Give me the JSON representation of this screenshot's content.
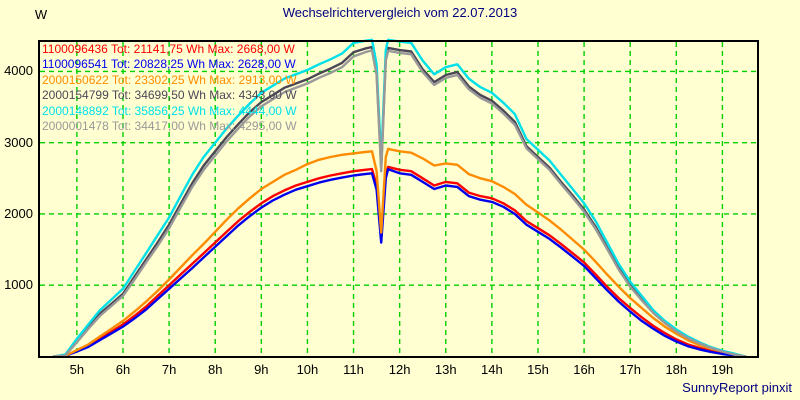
{
  "credit": "SunnyReport pinxit",
  "legend_labels": {
    "tot": "Tot:",
    "wh": "Wh",
    "max": "Max:",
    "w": "W"
  },
  "colors": {
    "background": "#FFFFD2",
    "grid": "#00CF00",
    "border": "#000000",
    "title_text": "#000080",
    "axis_text": "#000000",
    "credit_text": "#000080"
  },
  "chart_data": {
    "type": "line",
    "title": "Wechselrichtervergleich vom 22.07.2013",
    "y_unit": "W",
    "xlabel": "",
    "ylabel": "W",
    "xlim": [
      4.2,
      19.75
    ],
    "ylim": [
      0,
      4420
    ],
    "grid": true,
    "legend_position": "top-left",
    "yticks": [
      1000,
      2000,
      3000,
      4000
    ],
    "xtick_hours": [
      5,
      6,
      7,
      8,
      9,
      10,
      11,
      12,
      13,
      14,
      15,
      16,
      17,
      18,
      19
    ],
    "xtick_labels": [
      "5h",
      "6h",
      "7h",
      "8h",
      "9h",
      "10h",
      "11h",
      "12h",
      "13h",
      "14h",
      "15h",
      "16h",
      "17h",
      "18h",
      "19h"
    ],
    "x_hours": [
      4.5,
      4.75,
      5,
      5.25,
      5.5,
      5.75,
      6,
      6.25,
      6.5,
      6.75,
      7,
      7.25,
      7.5,
      7.75,
      8,
      8.25,
      8.5,
      8.75,
      9,
      9.25,
      9.5,
      9.75,
      10,
      10.25,
      10.5,
      10.75,
      11,
      11.25,
      11.4,
      11.5,
      11.6,
      11.7,
      11.75,
      12,
      12.25,
      12.5,
      12.75,
      13,
      13.25,
      13.5,
      13.75,
      14,
      14.25,
      14.5,
      14.75,
      15,
      15.25,
      15.5,
      15.75,
      16,
      16.25,
      16.5,
      16.75,
      17,
      17.25,
      17.5,
      17.75,
      18,
      18.25,
      18.5,
      18.75,
      19,
      19.25,
      19.5
    ],
    "series": [
      {
        "id": "1100096436",
        "total_wh": "21141,75",
        "max_w": "2668,00",
        "color": "#FF0000",
        "values": [
          0,
          10,
          80,
          150,
          250,
          350,
          450,
          570,
          700,
          850,
          1000,
          1150,
          1300,
          1450,
          1600,
          1750,
          1900,
          2030,
          2150,
          2250,
          2330,
          2400,
          2450,
          2500,
          2540,
          2570,
          2600,
          2620,
          2630,
          2400,
          1670,
          2550,
          2660,
          2620,
          2600,
          2500,
          2400,
          2450,
          2430,
          2300,
          2250,
          2220,
          2150,
          2050,
          1900,
          1800,
          1700,
          1580,
          1450,
          1320,
          1150,
          980,
          820,
          680,
          550,
          430,
          330,
          240,
          170,
          120,
          80,
          45,
          20,
          0
        ]
      },
      {
        "id": "1100096541",
        "total_wh": "20828,25",
        "max_w": "2628,00",
        "color": "#0000EE",
        "values": [
          0,
          8,
          70,
          135,
          230,
          325,
          420,
          535,
          660,
          805,
          950,
          1095,
          1240,
          1390,
          1540,
          1690,
          1840,
          1970,
          2090,
          2190,
          2270,
          2340,
          2390,
          2440,
          2480,
          2510,
          2540,
          2560,
          2570,
          2340,
          1600,
          2500,
          2628,
          2570,
          2550,
          2450,
          2350,
          2400,
          2380,
          2250,
          2200,
          2170,
          2100,
          2000,
          1850,
          1750,
          1650,
          1530,
          1400,
          1270,
          1100,
          930,
          770,
          630,
          500,
          390,
          290,
          210,
          145,
          100,
          65,
          35,
          15,
          0
        ]
      },
      {
        "id": "2000150622",
        "total_wh": "23302,25",
        "max_w": "2913,00",
        "color": "#FF8C00",
        "values": [
          0,
          10,
          90,
          170,
          280,
          390,
          500,
          630,
          770,
          920,
          1080,
          1250,
          1420,
          1580,
          1750,
          1920,
          2080,
          2220,
          2350,
          2450,
          2550,
          2620,
          2700,
          2760,
          2800,
          2830,
          2850,
          2870,
          2880,
          2600,
          1740,
          2800,
          2913,
          2880,
          2860,
          2780,
          2680,
          2710,
          2690,
          2560,
          2500,
          2460,
          2380,
          2280,
          2130,
          2020,
          1910,
          1780,
          1640,
          1500,
          1330,
          1150,
          980,
          820,
          680,
          540,
          420,
          320,
          230,
          160,
          110,
          70,
          30,
          0
        ]
      },
      {
        "id": "2000154799",
        "total_wh": "34699,50",
        "max_w": "4343,00",
        "color": "#4C4757",
        "values": [
          0,
          20,
          220,
          410,
          600,
          740,
          880,
          1120,
          1360,
          1600,
          1850,
          2140,
          2430,
          2680,
          2880,
          3080,
          3260,
          3430,
          3570,
          3670,
          3770,
          3830,
          3890,
          3970,
          4040,
          4120,
          4270,
          4320,
          4343,
          4000,
          2650,
          4200,
          4330,
          4300,
          4280,
          4030,
          3850,
          3950,
          3990,
          3790,
          3670,
          3590,
          3450,
          3290,
          2950,
          2800,
          2650,
          2450,
          2260,
          2060,
          1820,
          1530,
          1240,
          1000,
          810,
          620,
          480,
          360,
          265,
          190,
          125,
          75,
          35,
          0
        ]
      },
      {
        "id": "2000148892",
        "total_wh": "35856,25",
        "max_w": "4444,00",
        "color": "#00E0E8",
        "values": [
          0,
          30,
          250,
          450,
          650,
          800,
          950,
          1200,
          1450,
          1700,
          1950,
          2250,
          2550,
          2800,
          3000,
          3200,
          3380,
          3550,
          3700,
          3800,
          3900,
          3960,
          4020,
          4100,
          4170,
          4250,
          4400,
          4430,
          4444,
          4100,
          2750,
          4300,
          4444,
          4420,
          4400,
          4150,
          3960,
          4060,
          4100,
          3900,
          3780,
          3700,
          3560,
          3400,
          3050,
          2900,
          2750,
          2550,
          2350,
          2150,
          1900,
          1600,
          1300,
          1050,
          850,
          650,
          500,
          380,
          280,
          200,
          130,
          80,
          40,
          0
        ]
      },
      {
        "id": "2000001478",
        "total_wh": "34417,00",
        "max_w": "4295,00",
        "color": "#999999",
        "values": [
          0,
          15,
          200,
          390,
          570,
          710,
          850,
          1080,
          1320,
          1550,
          1800,
          2090,
          2380,
          2620,
          2820,
          3020,
          3200,
          3370,
          3510,
          3610,
          3710,
          3770,
          3830,
          3910,
          3980,
          4060,
          4210,
          4270,
          4295,
          3950,
          2600,
          4150,
          4290,
          4260,
          4240,
          3990,
          3810,
          3910,
          3950,
          3750,
          3630,
          3550,
          3410,
          3250,
          2920,
          2770,
          2620,
          2420,
          2230,
          2030,
          1790,
          1510,
          1220,
          980,
          790,
          610,
          470,
          350,
          260,
          185,
          120,
          70,
          30,
          0
        ]
      }
    ]
  }
}
